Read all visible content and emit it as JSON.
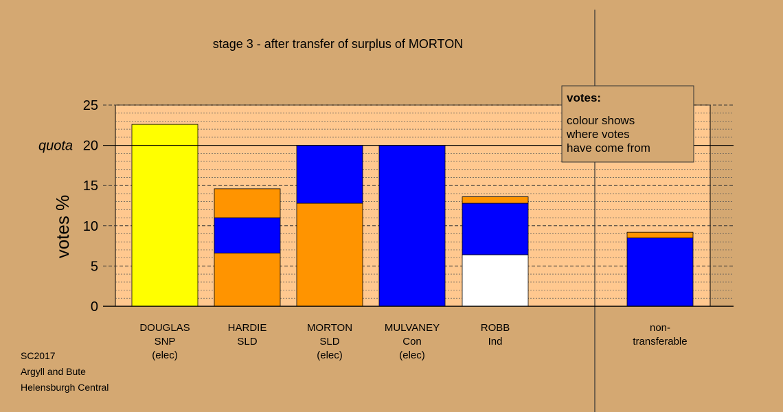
{
  "chart_data": {
    "type": "bar",
    "stacked": true,
    "title": "stage 3 - after transfer of surplus of MORTON",
    "ylabel": "votes %",
    "ylim": [
      0,
      25
    ],
    "yticks": [
      "0",
      "5",
      "10",
      "15",
      "20",
      "25"
    ],
    "quota": {
      "label": "quota",
      "value": 20
    },
    "grid": true,
    "colors": {
      "blue": "#0000ff",
      "orange": "#ff9400",
      "yellow": "#ffff00",
      "white": "#ffffff",
      "plot_bg": "#ffc88f",
      "page_bg": "#d4a872"
    },
    "candidates": [
      {
        "name": "DOUGLAS",
        "party": "SNP",
        "status": "(elec)",
        "segments": [
          {
            "color": "yellow",
            "value": 22.6
          }
        ]
      },
      {
        "name": "HARDIE",
        "party": "SLD",
        "status": "",
        "segments": [
          {
            "color": "orange",
            "value": 6.6
          },
          {
            "color": "blue",
            "value": 4.4
          },
          {
            "color": "orange",
            "value": 3.6
          }
        ]
      },
      {
        "name": "MORTON",
        "party": "SLD",
        "status": "(elec)",
        "segments": [
          {
            "color": "orange",
            "value": 12.8
          },
          {
            "color": "blue",
            "value": 7.2
          }
        ]
      },
      {
        "name": "MULVANEY",
        "party": "Con",
        "status": "(elec)",
        "segments": [
          {
            "color": "blue",
            "value": 20.0
          }
        ]
      },
      {
        "name": "ROBB",
        "party": "Ind",
        "status": "",
        "segments": [
          {
            "color": "white",
            "value": 6.4
          },
          {
            "color": "blue",
            "value": 6.4
          },
          {
            "color": "orange",
            "value": 0.8
          }
        ]
      }
    ],
    "nontransferable": {
      "name": "non-",
      "party": "transferable",
      "segments": [
        {
          "color": "blue",
          "value": 8.5
        },
        {
          "color": "orange",
          "value": 0.7
        }
      ]
    }
  },
  "legend": {
    "title": "votes:",
    "lines": [
      "colour shows",
      "where votes",
      "have come from"
    ]
  },
  "footer": {
    "lines": [
      "SC2017",
      "Argyll and Bute",
      "Helensburgh Central"
    ]
  }
}
